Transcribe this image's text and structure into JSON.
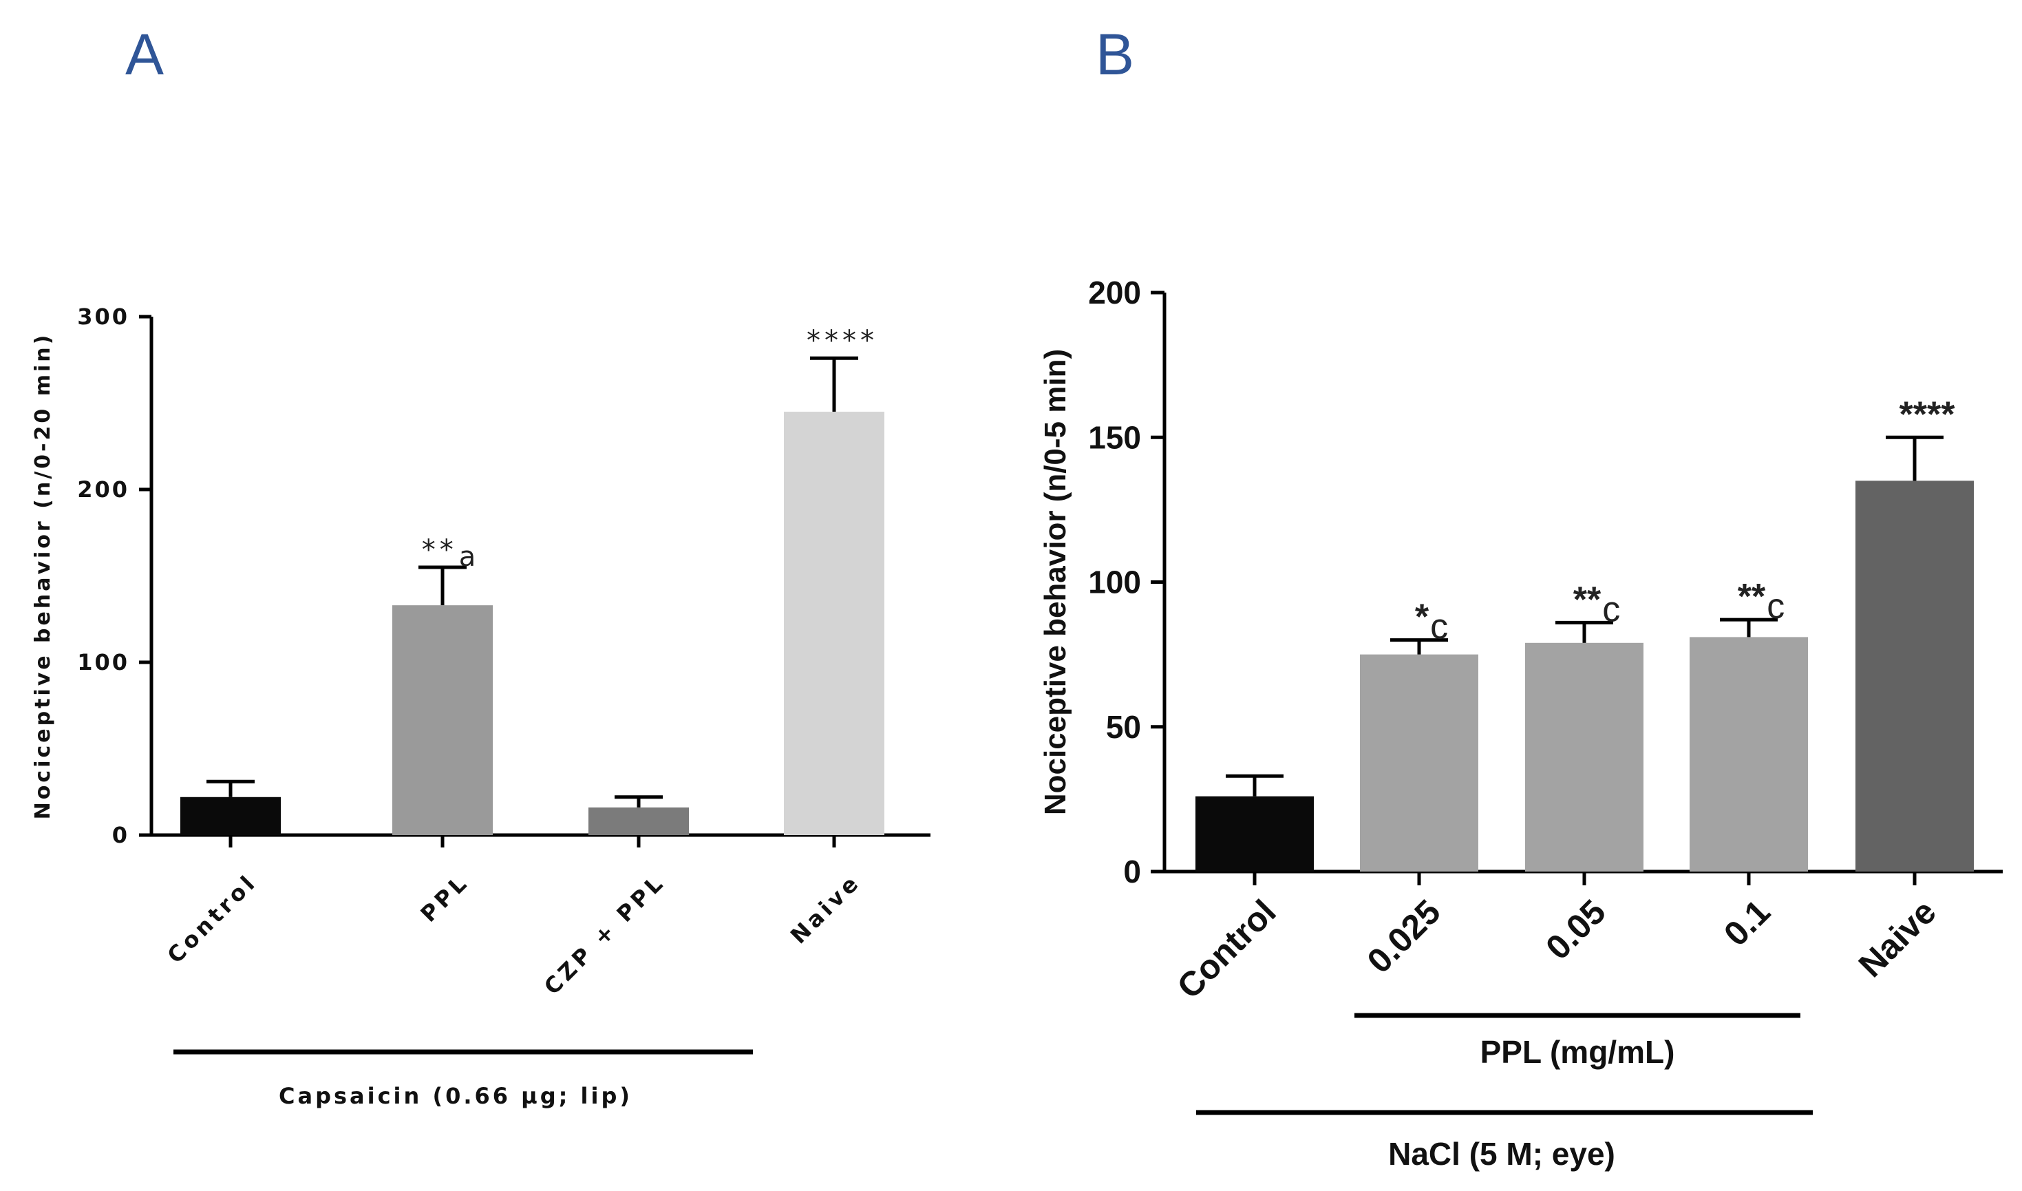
{
  "chart_data": [
    {
      "panel": "A",
      "type": "bar",
      "title": "",
      "ylabel": "Nociceptive behavior (n/0-20 min)",
      "xlabel": "",
      "ylim": [
        0,
        300
      ],
      "yticks": [
        "0",
        "100",
        "200",
        "300"
      ],
      "categories": [
        "Control",
        "PPL",
        "CZP + PPL",
        "Naive"
      ],
      "values": [
        22,
        133,
        16,
        245
      ],
      "errors": [
        9,
        22,
        6,
        31
      ],
      "colors": [
        "#0a0a0a",
        "#9a9a9a",
        "#7b7b7b",
        "#d4d4d4"
      ],
      "annotations": [
        {
          "stars": "",
          "letter": ""
        },
        {
          "stars": "**",
          "letter": "a"
        },
        {
          "stars": "",
          "letter": ""
        },
        {
          "stars": "****",
          "letter": ""
        }
      ],
      "group_label": "Capsaicin  (0.66 µg; lip)"
    },
    {
      "panel": "B",
      "type": "bar",
      "title": "",
      "ylabel": "Nociceptive behavior (n/0-5 min)",
      "xlabel": "",
      "ylim": [
        0,
        200
      ],
      "yticks": [
        "0",
        "50",
        "100",
        "150",
        "200"
      ],
      "categories": [
        "Control",
        "0.025",
        "0.05",
        "0.1",
        "Naive"
      ],
      "values": [
        26,
        75,
        79,
        81,
        135
      ],
      "errors": [
        7,
        5,
        7,
        6,
        15
      ],
      "colors": [
        "#0a0a0a",
        "#a3a3a3",
        "#a3a3a3",
        "#a3a3a3",
        "#636363"
      ],
      "annotations": [
        {
          "stars": "",
          "letter": ""
        },
        {
          "stars": "*",
          "letter": "c"
        },
        {
          "stars": "**",
          "letter": "c"
        },
        {
          "stars": "**",
          "letter": "c"
        },
        {
          "stars": "****",
          "letter": ""
        }
      ],
      "subgroup_label": "PPL (mg/mL)",
      "group_label": "NaCl  (5 M; eye)"
    }
  ]
}
